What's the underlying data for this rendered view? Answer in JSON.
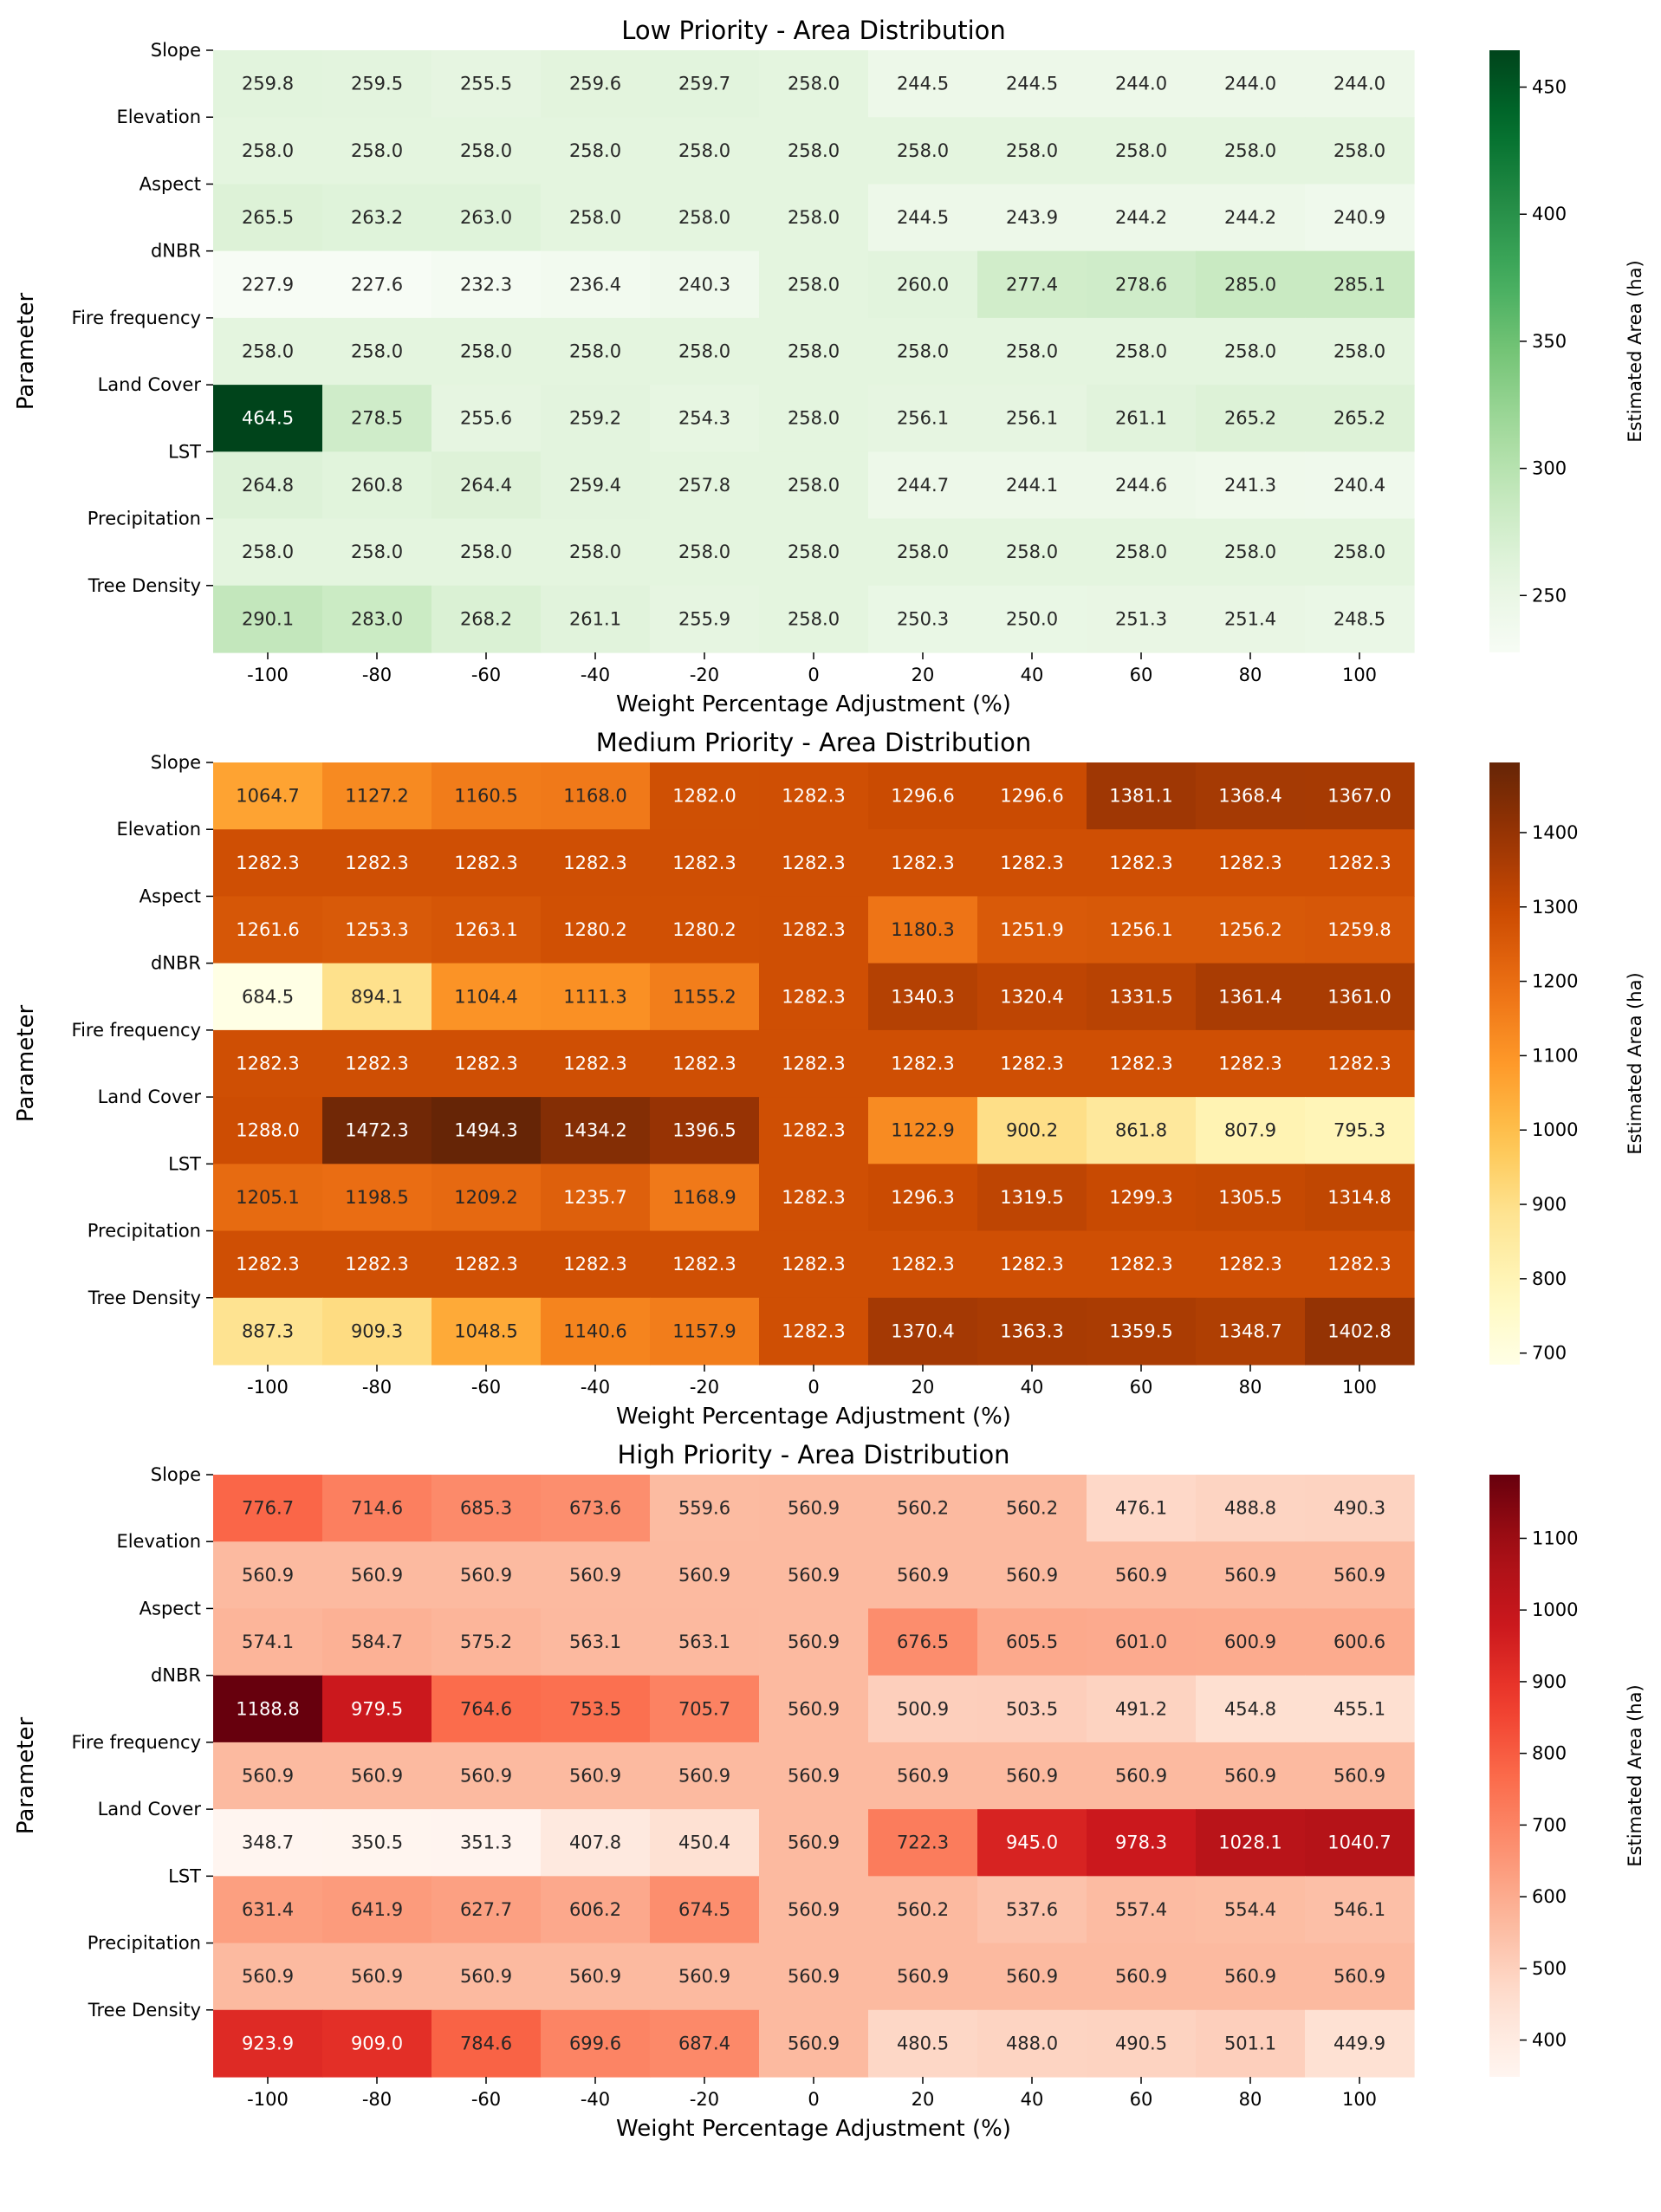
{
  "figure": {
    "ylabel": "Parameter",
    "xlabel": "Weight Percentage Adjustment (%)",
    "colorbar_label": "Estimated Area (ha)"
  },
  "chart_data": [
    {
      "type": "heatmap",
      "title": "Low Priority - Area Distribution",
      "colormap": "Greens",
      "xlabel": "Weight Percentage Adjustment (%)",
      "ylabel": "Parameter",
      "colorbar_label": "Estimated Area (ha)",
      "x": [
        "-100",
        "-80",
        "-60",
        "-40",
        "-20",
        "0",
        "20",
        "40",
        "60",
        "80",
        "100"
      ],
      "y": [
        "Slope",
        "Elevation",
        "Aspect",
        "dNBR",
        "Fire frequency",
        "Land Cover",
        "LST",
        "Precipitation",
        "Tree Density"
      ],
      "values": [
        [
          259.8,
          259.5,
          255.5,
          259.6,
          259.7,
          258.0,
          244.5,
          244.5,
          244.0,
          244.0,
          244.0
        ],
        [
          258.0,
          258.0,
          258.0,
          258.0,
          258.0,
          258.0,
          258.0,
          258.0,
          258.0,
          258.0,
          258.0
        ],
        [
          265.5,
          263.2,
          263.0,
          258.0,
          258.0,
          258.0,
          244.5,
          243.9,
          244.2,
          244.2,
          240.9
        ],
        [
          227.9,
          227.6,
          232.3,
          236.4,
          240.3,
          258.0,
          260.0,
          277.4,
          278.6,
          285.0,
          285.1
        ],
        [
          258.0,
          258.0,
          258.0,
          258.0,
          258.0,
          258.0,
          258.0,
          258.0,
          258.0,
          258.0,
          258.0
        ],
        [
          464.5,
          278.5,
          255.6,
          259.2,
          254.3,
          258.0,
          256.1,
          256.1,
          261.1,
          265.2,
          265.2
        ],
        [
          264.8,
          260.8,
          264.4,
          259.4,
          257.8,
          258.0,
          244.7,
          244.1,
          244.6,
          241.3,
          240.4
        ],
        [
          258.0,
          258.0,
          258.0,
          258.0,
          258.0,
          258.0,
          258.0,
          258.0,
          258.0,
          258.0,
          258.0
        ],
        [
          290.1,
          283.0,
          268.2,
          261.1,
          255.9,
          258.0,
          250.3,
          250.0,
          251.3,
          251.4,
          248.5
        ]
      ],
      "colorbar_ticks": [
        "250",
        "300",
        "350",
        "400",
        "450"
      ],
      "vmin": 227.6,
      "vmax": 464.5
    },
    {
      "type": "heatmap",
      "title": "Medium Priority - Area Distribution",
      "colormap": "YlOrBr",
      "xlabel": "Weight Percentage Adjustment (%)",
      "ylabel": "Parameter",
      "colorbar_label": "Estimated Area (ha)",
      "x": [
        "-100",
        "-80",
        "-60",
        "-40",
        "-20",
        "0",
        "20",
        "40",
        "60",
        "80",
        "100"
      ],
      "y": [
        "Slope",
        "Elevation",
        "Aspect",
        "dNBR",
        "Fire frequency",
        "Land Cover",
        "LST",
        "Precipitation",
        "Tree Density"
      ],
      "values": [
        [
          1064.7,
          1127.2,
          1160.5,
          1168.0,
          1282.0,
          1282.3,
          1296.6,
          1296.6,
          1381.1,
          1368.4,
          1367.0
        ],
        [
          1282.3,
          1282.3,
          1282.3,
          1282.3,
          1282.3,
          1282.3,
          1282.3,
          1282.3,
          1282.3,
          1282.3,
          1282.3
        ],
        [
          1261.6,
          1253.3,
          1263.1,
          1280.2,
          1280.2,
          1282.3,
          1180.3,
          1251.9,
          1256.1,
          1256.2,
          1259.8
        ],
        [
          684.5,
          894.1,
          1104.4,
          1111.3,
          1155.2,
          1282.3,
          1340.3,
          1320.4,
          1331.5,
          1361.4,
          1361.0
        ],
        [
          1282.3,
          1282.3,
          1282.3,
          1282.3,
          1282.3,
          1282.3,
          1282.3,
          1282.3,
          1282.3,
          1282.3,
          1282.3
        ],
        [
          1288.0,
          1472.3,
          1494.3,
          1434.2,
          1396.5,
          1282.3,
          1122.9,
          900.2,
          861.8,
          807.9,
          795.3
        ],
        [
          1205.1,
          1198.5,
          1209.2,
          1235.7,
          1168.9,
          1282.3,
          1296.3,
          1319.5,
          1299.3,
          1305.5,
          1314.8
        ],
        [
          1282.3,
          1282.3,
          1282.3,
          1282.3,
          1282.3,
          1282.3,
          1282.3,
          1282.3,
          1282.3,
          1282.3,
          1282.3
        ],
        [
          887.3,
          909.3,
          1048.5,
          1140.6,
          1157.9,
          1282.3,
          1370.4,
          1363.3,
          1359.5,
          1348.7,
          1402.8
        ]
      ],
      "colorbar_ticks": [
        "700",
        "800",
        "900",
        "1000",
        "1100",
        "1200",
        "1300",
        "1400"
      ],
      "vmin": 684.5,
      "vmax": 1494.3
    },
    {
      "type": "heatmap",
      "title": "High Priority - Area Distribution",
      "colormap": "Reds",
      "xlabel": "Weight Percentage Adjustment (%)",
      "ylabel": "Parameter",
      "colorbar_label": "Estimated Area (ha)",
      "x": [
        "-100",
        "-80",
        "-60",
        "-40",
        "-20",
        "0",
        "20",
        "40",
        "60",
        "80",
        "100"
      ],
      "y": [
        "Slope",
        "Elevation",
        "Aspect",
        "dNBR",
        "Fire frequency",
        "Land Cover",
        "LST",
        "Precipitation",
        "Tree Density"
      ],
      "values": [
        [
          776.7,
          714.6,
          685.3,
          673.6,
          559.6,
          560.9,
          560.2,
          560.2,
          476.1,
          488.8,
          490.3
        ],
        [
          560.9,
          560.9,
          560.9,
          560.9,
          560.9,
          560.9,
          560.9,
          560.9,
          560.9,
          560.9,
          560.9
        ],
        [
          574.1,
          584.7,
          575.2,
          563.1,
          563.1,
          560.9,
          676.5,
          605.5,
          601.0,
          600.9,
          600.6
        ],
        [
          1188.8,
          979.5,
          764.6,
          753.5,
          705.7,
          560.9,
          500.9,
          503.5,
          491.2,
          454.8,
          455.1
        ],
        [
          560.9,
          560.9,
          560.9,
          560.9,
          560.9,
          560.9,
          560.9,
          560.9,
          560.9,
          560.9,
          560.9
        ],
        [
          348.7,
          350.5,
          351.3,
          407.8,
          450.4,
          560.9,
          722.3,
          945.0,
          978.3,
          1028.1,
          1040.7
        ],
        [
          631.4,
          641.9,
          627.7,
          606.2,
          674.5,
          560.9,
          560.2,
          537.6,
          557.4,
          554.4,
          546.1
        ],
        [
          560.9,
          560.9,
          560.9,
          560.9,
          560.9,
          560.9,
          560.9,
          560.9,
          560.9,
          560.9,
          560.9
        ],
        [
          923.9,
          909.0,
          784.6,
          699.6,
          687.4,
          560.9,
          480.5,
          488.0,
          490.5,
          501.1,
          449.9
        ]
      ],
      "colorbar_ticks": [
        "400",
        "500",
        "600",
        "700",
        "800",
        "900",
        "1000",
        "1100"
      ],
      "vmin": 348.7,
      "vmax": 1188.8
    }
  ]
}
